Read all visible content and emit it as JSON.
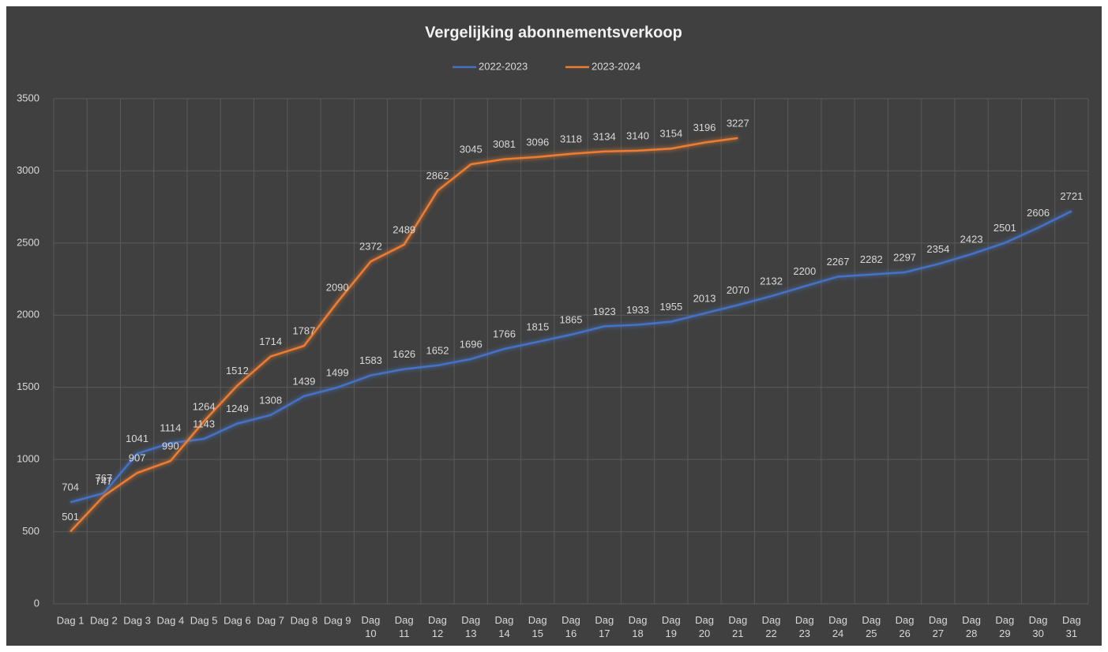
{
  "chart_data": {
    "type": "line",
    "title": "Vergelijking abonnementsverkoop",
    "categories": [
      "Dag 1",
      "Dag 2",
      "Dag 3",
      "Dag 4",
      "Dag 5",
      "Dag 6",
      "Dag 7",
      "Dag 8",
      "Dag 9",
      "Dag 10",
      "Dag 11",
      "Dag 12",
      "Dag 13",
      "Dag 14",
      "Dag 15",
      "Dag 16",
      "Dag 17",
      "Dag 18",
      "Dag 19",
      "Dag 20",
      "Dag 21",
      "Dag 22",
      "Dag 23",
      "Dag 24",
      "Dag 25",
      "Dag 26",
      "Dag 27",
      "Dag 28",
      "Dag 29",
      "Dag 30",
      "Dag 31"
    ],
    "series": [
      {
        "name": "2022-2023",
        "color": "#4472c4",
        "values": [
          704,
          767,
          1041,
          1114,
          1143,
          1249,
          1308,
          1439,
          1499,
          1583,
          1626,
          1652,
          1696,
          1766,
          1815,
          1865,
          1923,
          1933,
          1955,
          2013,
          2070,
          2132,
          2200,
          2267,
          2282,
          2297,
          2354,
          2423,
          2501,
          2606,
          2721
        ]
      },
      {
        "name": "2023-2024",
        "color": "#ed7d31",
        "values": [
          501,
          747,
          907,
          990,
          1264,
          1512,
          1714,
          1787,
          2090,
          2372,
          2489,
          2862,
          3045,
          3081,
          3096,
          3118,
          3134,
          3140,
          3154,
          3196,
          3227,
          null,
          null,
          null,
          null,
          null,
          null,
          null,
          null,
          null,
          null
        ]
      }
    ],
    "ylim": [
      0,
      3500
    ],
    "yticks": [
      0,
      500,
      1000,
      1500,
      2000,
      2500,
      3000,
      3500
    ],
    "grid": true,
    "legend": "top"
  }
}
